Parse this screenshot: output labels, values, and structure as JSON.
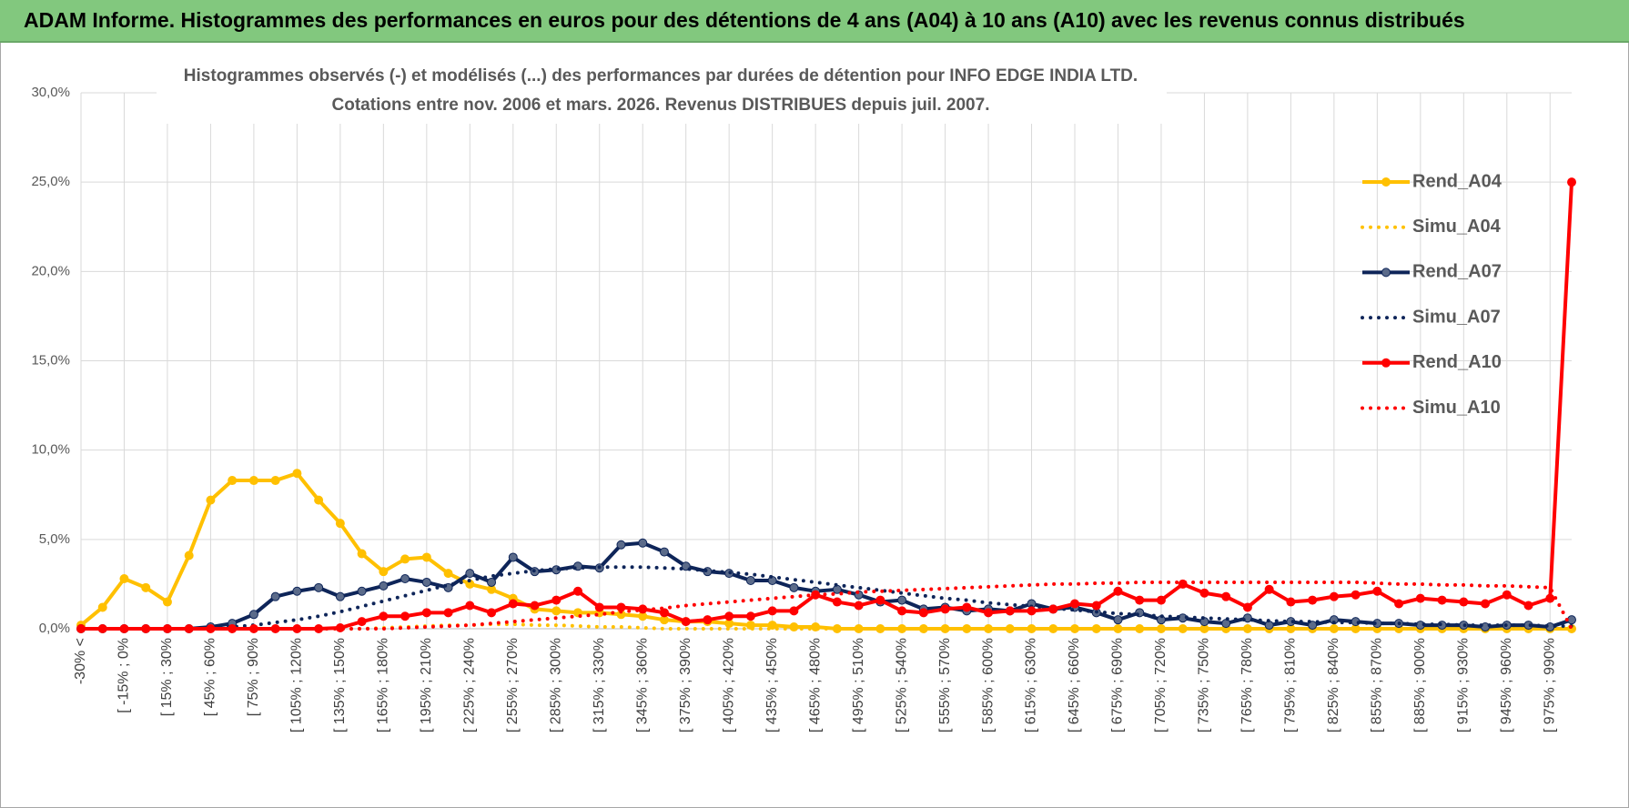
{
  "header": {
    "title": "ADAM Informe. Histogrammes des performances en euros pour des détentions de 4 ans (A04) à 10 ans (A10) avec les revenus connus distribués"
  },
  "chart_data": {
    "type": "line",
    "title": "Histogrammes observés (-) et modélisés (...) des performances par durées de détention pour INFO EDGE INDIA LTD.",
    "subtitle": "Cotations entre nov. 2006 et mars. 2026.  Revenus DISTRIBUES depuis juil. 2007.",
    "categories": [
      "-30% <",
      null,
      "[ -15% ; 0%",
      null,
      "[ 15% ; 30%",
      null,
      "[ 45% ; 60%",
      null,
      "[ 75% ; 90%",
      null,
      "[ 105% ; 120%",
      null,
      "[ 135% ; 150%",
      null,
      "[ 165% ; 180%",
      null,
      "[ 195% ; 210%",
      null,
      "[ 225% ; 240%",
      null,
      "[ 255% ; 270%",
      null,
      "[ 285% ; 300%",
      null,
      "[ 315% ; 330%",
      null,
      "[ 345% ; 360%",
      null,
      "[ 375% ; 390%",
      null,
      "[ 405% ; 420%",
      null,
      "[ 435% ; 450%",
      null,
      "[ 465% ; 480%",
      null,
      "[ 495% ; 510%",
      null,
      "[ 525% ; 540%",
      null,
      "[ 555% ; 570%",
      null,
      "[ 585% ; 600%",
      null,
      "[ 615% ; 630%",
      null,
      "[ 645% ; 660%",
      null,
      "[ 675% ; 690%",
      null,
      "[ 705% ; 720%",
      null,
      "[ 735% ; 750%",
      null,
      "[ 765% ; 780%",
      null,
      "[ 795% ; 810%",
      null,
      "[ 825% ; 840%",
      null,
      "[ 855% ; 870%",
      null,
      "[ 885% ; 900%",
      null,
      "[ 915% ; 930%",
      null,
      "[ 945% ; 960%",
      null,
      "[ 975% ; 990%",
      null
    ],
    "ylim": [
      0,
      30
    ],
    "yticks": [
      {
        "value": 0,
        "label": "0,0%"
      },
      {
        "value": 5,
        "label": "5,0%"
      },
      {
        "value": 10,
        "label": "10,0%"
      },
      {
        "value": 15,
        "label": "15,0%"
      },
      {
        "value": 20,
        "label": "20,0%"
      },
      {
        "value": 25,
        "label": "25,0%"
      },
      {
        "value": 30,
        "label": "30,0%"
      }
    ],
    "grid": true,
    "legend": "right",
    "series": [
      {
        "name": "Rend_A04",
        "color": "#ffc000",
        "marker_color": "#ffc000",
        "dash": "solid",
        "values": [
          0.2,
          1.2,
          2.8,
          2.3,
          1.5,
          4.1,
          7.2,
          8.3,
          8.3,
          8.3,
          8.7,
          7.2,
          5.9,
          4.2,
          3.2,
          3.9,
          4.0,
          3.1,
          2.5,
          2.2,
          1.7,
          1.1,
          1.0,
          0.9,
          0.9,
          0.8,
          0.7,
          0.5,
          0.4,
          0.4,
          0.3,
          0.2,
          0.2,
          0.1,
          0.1,
          0,
          0,
          0,
          0,
          0,
          0,
          0,
          0,
          0,
          0,
          0,
          0,
          0,
          0,
          0,
          0,
          0,
          0,
          0,
          0,
          0,
          0,
          0,
          0,
          0,
          0,
          0,
          0,
          0,
          0,
          0,
          0,
          0,
          0,
          0
        ]
      },
      {
        "name": "Simu_A04",
        "color": "#ffc000",
        "dash": "dotted",
        "values": [
          0,
          0,
          0,
          0,
          0,
          0,
          0,
          0,
          0,
          0,
          0,
          0,
          0,
          0,
          0.05,
          0.1,
          0.15,
          0.2,
          0.2,
          0.25,
          0.25,
          0.2,
          0.2,
          0.15,
          0.1,
          0.1,
          0.05,
          0,
          0,
          0,
          0,
          0,
          0,
          0,
          0,
          0,
          0,
          0,
          0,
          0,
          0,
          0,
          0,
          0,
          0,
          0,
          0,
          0,
          0,
          0,
          0,
          0,
          0,
          0,
          0,
          0,
          0,
          0,
          0,
          0,
          0,
          0,
          0,
          0,
          0,
          0,
          0,
          0,
          0,
          0
        ]
      },
      {
        "name": "Rend_A07",
        "color": "#0e2559",
        "marker_color": "#5b6b8a",
        "dash": "solid",
        "values": [
          0,
          0,
          0,
          0,
          0,
          0,
          0.1,
          0.3,
          0.8,
          1.8,
          2.1,
          2.3,
          1.8,
          2.1,
          2.4,
          2.8,
          2.6,
          2.3,
          3.1,
          2.6,
          4.0,
          3.2,
          3.3,
          3.5,
          3.4,
          4.7,
          4.8,
          4.3,
          3.5,
          3.2,
          3.1,
          2.7,
          2.7,
          2.3,
          2.1,
          2.2,
          1.9,
          1.5,
          1.6,
          1.1,
          1.2,
          1.0,
          1.1,
          1.0,
          1.4,
          1.1,
          1.2,
          0.9,
          0.5,
          0.9,
          0.5,
          0.6,
          0.4,
          0.3,
          0.6,
          0.2,
          0.4,
          0.2,
          0.5,
          0.4,
          0.3,
          0.3,
          0.2,
          0.2,
          0.2,
          0.1,
          0.2,
          0.2,
          0.1,
          0.5
        ]
      },
      {
        "name": "Simu_A07",
        "color": "#0e2559",
        "dash": "dotted",
        "values": [
          0,
          0,
          0,
          0,
          0,
          0,
          0.05,
          0.1,
          0.2,
          0.35,
          0.5,
          0.7,
          0.95,
          1.25,
          1.55,
          1.85,
          2.15,
          2.45,
          2.7,
          2.95,
          3.1,
          3.25,
          3.35,
          3.4,
          3.45,
          3.45,
          3.45,
          3.4,
          3.35,
          3.25,
          3.15,
          3.05,
          2.9,
          2.75,
          2.6,
          2.45,
          2.3,
          2.15,
          2.0,
          1.85,
          1.7,
          1.6,
          1.45,
          1.35,
          1.25,
          1.15,
          1.05,
          0.95,
          0.85,
          0.8,
          0.7,
          0.65,
          0.6,
          0.55,
          0.5,
          0.45,
          0.4,
          0.4,
          0.35,
          0.35,
          0.3,
          0.3,
          0.25,
          0.25,
          0.2,
          0.2,
          0.2,
          0.2,
          0.15,
          0.15
        ]
      },
      {
        "name": "Rend_A10",
        "color": "#ff0000",
        "marker_color": "#ff0000",
        "dash": "solid",
        "values": [
          0,
          0,
          0,
          0,
          0,
          0,
          0,
          0,
          0,
          0,
          0,
          0,
          0.05,
          0.4,
          0.7,
          0.7,
          0.9,
          0.9,
          1.3,
          0.9,
          1.4,
          1.3,
          1.6,
          2.1,
          1.2,
          1.2,
          1.1,
          0.9,
          0.4,
          0.5,
          0.7,
          0.7,
          1.0,
          1.0,
          1.9,
          1.5,
          1.3,
          1.6,
          1.0,
          0.9,
          1.1,
          1.2,
          0.9,
          1.0,
          1.0,
          1.1,
          1.4,
          1.3,
          2.1,
          1.6,
          1.6,
          2.5,
          2.0,
          1.8,
          1.2,
          2.2,
          1.5,
          1.6,
          1.8,
          1.9,
          2.1,
          1.4,
          1.7,
          1.6,
          1.5,
          1.4,
          1.9,
          1.3,
          1.7,
          25
        ]
      },
      {
        "name": "Simu_A10",
        "color": "#ff0000",
        "dash": "dotted",
        "values": [
          0,
          0,
          0,
          0,
          0,
          0,
          0,
          0,
          0,
          0,
          0,
          0,
          0,
          0,
          0,
          0.05,
          0.1,
          0.15,
          0.2,
          0.3,
          0.4,
          0.5,
          0.6,
          0.7,
          0.8,
          0.95,
          1.05,
          1.15,
          1.3,
          1.4,
          1.5,
          1.6,
          1.7,
          1.8,
          1.9,
          1.95,
          2.05,
          2.1,
          2.15,
          2.2,
          2.25,
          2.3,
          2.35,
          2.4,
          2.45,
          2.5,
          2.5,
          2.55,
          2.55,
          2.6,
          2.6,
          2.6,
          2.6,
          2.6,
          2.6,
          2.6,
          2.6,
          2.6,
          2.6,
          2.6,
          2.55,
          2.5,
          2.5,
          2.45,
          2.45,
          2.4,
          2.4,
          2.35,
          2.3,
          0
        ]
      }
    ]
  }
}
